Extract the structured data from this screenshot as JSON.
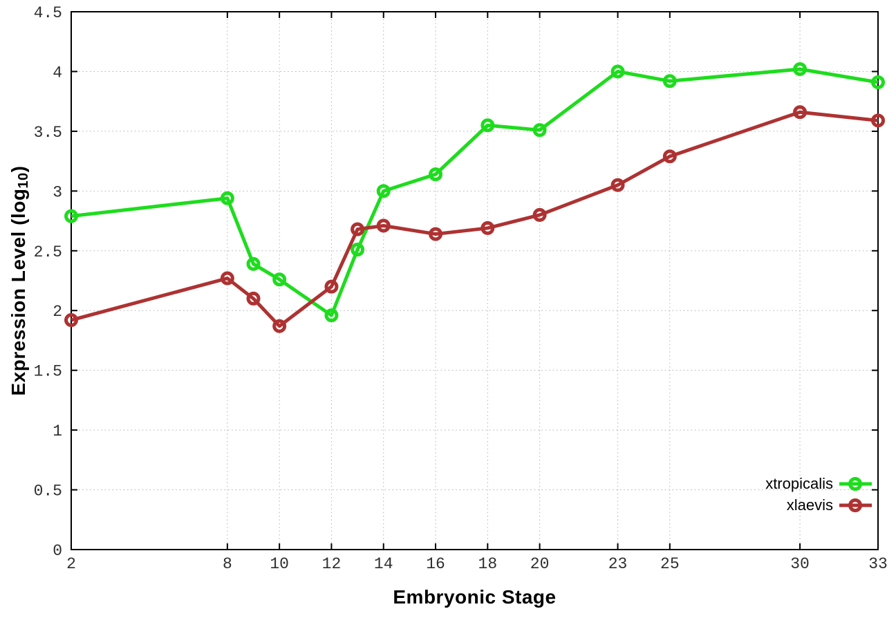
{
  "chart_data": {
    "type": "line",
    "title": "",
    "xlabel": "Embryonic Stage",
    "ylabel_parts": {
      "prefix": "Expression Level (log",
      "sub": "10",
      "suffix": ")"
    },
    "xlim": [
      2,
      33
    ],
    "ylim": [
      0,
      4.5
    ],
    "xtick_values": [
      2,
      8,
      10,
      12,
      14,
      16,
      18,
      20,
      23,
      25,
      30,
      33
    ],
    "xtick_labels": [
      "2",
      "8",
      "10",
      "12",
      "14",
      "16",
      "18",
      "20",
      "23",
      "25",
      "30",
      "33"
    ],
    "ytick_values": [
      0,
      0.5,
      1,
      1.5,
      2,
      2.5,
      3,
      3.5,
      4,
      4.5
    ],
    "ytick_labels": [
      "0",
      "0.5",
      "1",
      "1.5",
      "2",
      "2.5",
      "3",
      "3.5",
      "4",
      "4.5"
    ],
    "grid": "dotted, horizontal and vertical at every tick",
    "legend_position": "inside bottom-right, no box, markers right of labels",
    "x": [
      2,
      8,
      9,
      10,
      12,
      13,
      14,
      16,
      18,
      20,
      23,
      25,
      30,
      33
    ],
    "series": [
      {
        "name": "xtropicalis",
        "color": "#1edc1e",
        "marker": "open-circle",
        "values": [
          2.79,
          2.94,
          2.39,
          2.26,
          1.96,
          2.51,
          3.0,
          3.14,
          3.55,
          3.51,
          4.0,
          3.92,
          4.02,
          3.91
        ]
      },
      {
        "name": "xlaevis",
        "color": "#ae3232",
        "marker": "open-circle",
        "values": [
          1.92,
          2.27,
          2.1,
          1.87,
          2.2,
          2.68,
          2.71,
          2.64,
          2.69,
          2.8,
          3.05,
          3.29,
          3.66,
          3.59
        ]
      }
    ],
    "style": {
      "grid_color": "#b4b4b4",
      "border_color": "#000000",
      "tick_label_color": "#2e2e2e",
      "background": "#ffffff"
    }
  }
}
